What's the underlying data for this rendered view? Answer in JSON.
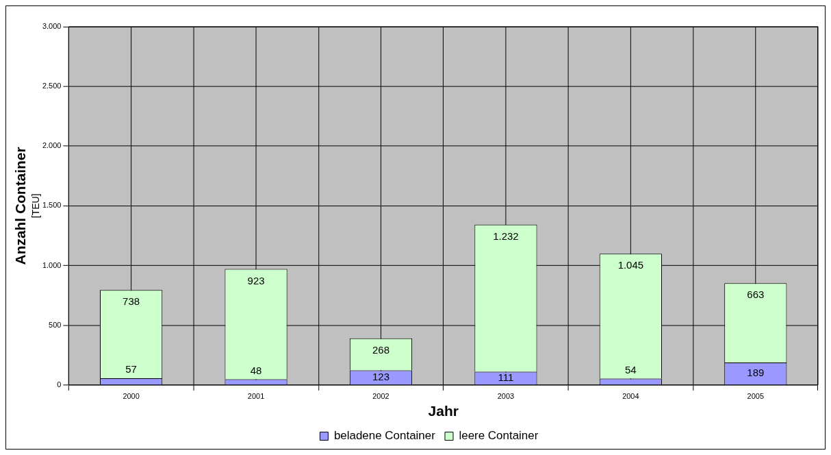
{
  "chart_data": {
    "type": "bar",
    "xlabel": "Jahr",
    "ylabel": "Anzahl Container\n[TEU]",
    "categories": [
      "2000",
      "2001",
      "2002",
      "2003",
      "2004",
      "2005"
    ],
    "series": [
      {
        "name": "beladene Container",
        "color": "#9999ff",
        "values": [
          57,
          48,
          123,
          111,
          54,
          189
        ],
        "value_labels": [
          "57",
          "48",
          "123",
          "111",
          "54",
          "189"
        ]
      },
      {
        "name": "leere Container",
        "color": "#ccffcc",
        "values": [
          738,
          923,
          268,
          1232,
          1045,
          663
        ],
        "value_labels": [
          "738",
          "923",
          "268",
          "1.232",
          "1.045",
          "663"
        ]
      }
    ],
    "stacked": true,
    "ylim": [
      0,
      3000
    ],
    "yticks": [
      0,
      500,
      {
        "value": 1000,
        "label": "1.000"
      },
      {
        "value": 1500,
        "label": "1.500"
      },
      {
        "value": 2000,
        "label": "2.000"
      },
      {
        "value": 2500,
        "label": "2.500"
      },
      {
        "value": 3000,
        "label": "3.000"
      }
    ],
    "grid": true,
    "legend": "bottom"
  }
}
